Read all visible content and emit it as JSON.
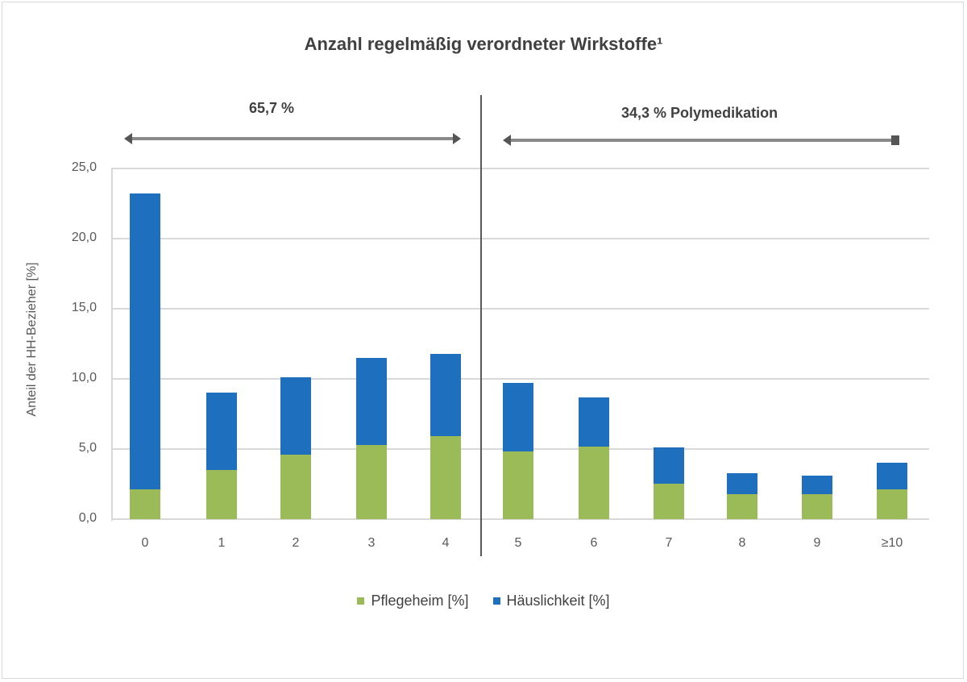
{
  "chart_data": {
    "type": "bar",
    "stacked": true,
    "title": "Anzahl regelmäßig verordneter Wirkstoffe¹",
    "xlabel": "",
    "ylabel": "Anteil der HH-Bezieher [%]",
    "ylim": [
      0,
      25
    ],
    "yticks": [
      "0,0",
      "5,0",
      "10,0",
      "15,0",
      "20,0",
      "25,0"
    ],
    "grid": true,
    "legend_position": "bottom",
    "categories": [
      "0",
      "1",
      "2",
      "3",
      "4",
      "5",
      "6",
      "7",
      "8",
      "9",
      "≥10"
    ],
    "series": [
      {
        "name": "Pflegeheim [%]",
        "color": "#9bbb59",
        "values": [
          2.1,
          3.5,
          4.6,
          5.3,
          5.9,
          4.8,
          5.2,
          2.5,
          1.8,
          1.8,
          2.1
        ]
      },
      {
        "name": "Häuslichkeit [%]",
        "color": "#1f6fbf",
        "values": [
          21.1,
          5.5,
          5.5,
          6.2,
          5.9,
          4.9,
          3.5,
          2.6,
          1.5,
          1.3,
          1.9
        ]
      }
    ],
    "totals": [
      23.2,
      9.0,
      10.1,
      11.5,
      11.8,
      9.7,
      8.7,
      5.1,
      3.3,
      3.1,
      4.0
    ],
    "annotations": [
      {
        "text": "65,7 %",
        "range": [
          "0",
          "4"
        ]
      },
      {
        "text": "34,3 % Polymedikation",
        "range": [
          "5",
          "≥10"
        ]
      }
    ]
  },
  "labels": {
    "title": "Anzahl regelmäßig verordneter Wirkstoffe¹",
    "left_span": "65,7 %",
    "right_span": "34,3 % Polymedikation",
    "ylabel": "Anteil der HH-Bezieher [%]",
    "legend_green": "Pflegeheim [%]",
    "legend_blue": "Häuslichkeit [%]"
  }
}
